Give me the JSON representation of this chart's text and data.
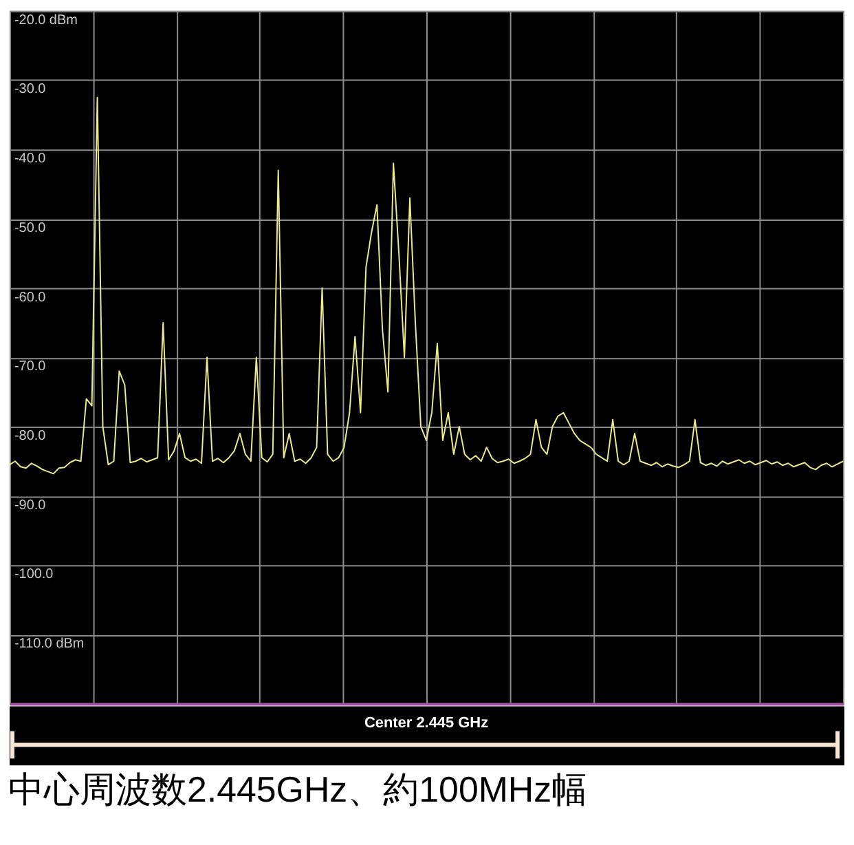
{
  "chart_data": {
    "type": "line",
    "categories": [
      null,
      null,
      null,
      null,
      null,
      null,
      null,
      null,
      null,
      null,
      null,
      null,
      null,
      null,
      null,
      null,
      null,
      null,
      null,
      null,
      null,
      null,
      null,
      null,
      null,
      null,
      null,
      null,
      null,
      null,
      null,
      null,
      null,
      null,
      null,
      null,
      null,
      null,
      null,
      null,
      null,
      null,
      null,
      null,
      null,
      null,
      null,
      null,
      null,
      null,
      null,
      null,
      null,
      null,
      null,
      null,
      null,
      null,
      null,
      null,
      null,
      null,
      null,
      null,
      null,
      null,
      null,
      null,
      null,
      null,
      null,
      null,
      null,
      null,
      null,
      null,
      null,
      null,
      null,
      null,
      null,
      null,
      null,
      null,
      null,
      null,
      null,
      null,
      null,
      null,
      null,
      null,
      null,
      null,
      null,
      null,
      null,
      null,
      null,
      null,
      null,
      null,
      null,
      null,
      null,
      null,
      null,
      null,
      null,
      null,
      null,
      null,
      null,
      null,
      null,
      null,
      null,
      null,
      null,
      null,
      null,
      null,
      null,
      null,
      null,
      null,
      null,
      null,
      null,
      null,
      null,
      null,
      null,
      null,
      null,
      null,
      null,
      null,
      null,
      null,
      null,
      null,
      null,
      null,
      null,
      null,
      null,
      null,
      null,
      null,
      null,
      null,
      null
    ],
    "series": [
      {
        "color": "#e8e88c",
        "values": [
          -85.5,
          -85.0,
          -85.8,
          -86.0,
          -85.3,
          -85.7,
          -86.2,
          -86.5,
          -86.8,
          -86.0,
          -85.9,
          -85.2,
          -84.8,
          -85.0,
          -76,
          -77,
          -32.5,
          -80,
          -85.5,
          -85.0,
          -72,
          -74,
          -85.2,
          -85.0,
          -84.6,
          -85.1,
          -84.8,
          -84.5,
          -65,
          -84.8,
          -83.5,
          -81,
          -84.5,
          -85.0,
          -84.7,
          -85.3,
          -70,
          -85.0,
          -84.6,
          -85.2,
          -84.5,
          -83.5,
          -81,
          -84.0,
          -85.0,
          -70,
          -84.5,
          -85.1,
          -84.0,
          -43,
          -84.5,
          -81,
          -85.0,
          -84.7,
          -85.3,
          -84.5,
          -83.0,
          -60,
          -84.0,
          -85.0,
          -84.5,
          -83,
          -78,
          -67,
          -78,
          -57,
          -52,
          -48,
          -66,
          -75,
          -42,
          -55,
          -70,
          -47,
          -65,
          -80,
          -82,
          -78,
          -68,
          -82,
          -78,
          -84,
          -80,
          -84,
          -84.8,
          -84.2,
          -85.0,
          -83,
          -84.6,
          -85.2,
          -85.0,
          -84.7,
          -85.3,
          -85.0,
          -84.6,
          -84.0,
          -79,
          -83,
          -84,
          -80,
          -78.5,
          -78,
          -79.5,
          -81,
          -82,
          -82.5,
          -83,
          -84,
          -84.5,
          -85,
          -79,
          -85,
          -85.5,
          -85,
          -81,
          -85,
          -85.3,
          -85.6,
          -85.2,
          -85.8,
          -85.4,
          -85.7,
          -85.9,
          -85.5,
          -85.0,
          -79,
          -85.2,
          -85.6,
          -85.3,
          -85.7,
          -85.0,
          -85.4,
          -85.1,
          -84.8,
          -85.3,
          -85.0,
          -85.5,
          -85.2,
          -84.9,
          -85.4,
          -85.1,
          -85.6,
          -85.3,
          -85.8,
          -85.5,
          -85.2,
          -85.9,
          -86.2,
          -85.6,
          -85.3,
          -85.8,
          -85.4,
          -85.0
        ]
      }
    ],
    "ylim": [
      -120,
      -20
    ],
    "yticks": [
      {
        "value": -20,
        "label": "-20.0 dBm"
      },
      {
        "value": -30,
        "label": "-30.0"
      },
      {
        "value": -40,
        "label": "-40.0"
      },
      {
        "value": -50,
        "label": "-50.0"
      },
      {
        "value": -60,
        "label": "-60.0"
      },
      {
        "value": -70,
        "label": "-70.0"
      },
      {
        "value": -80,
        "label": "-80.0"
      },
      {
        "value": -90,
        "label": "-90.0"
      },
      {
        "value": -100,
        "label": "-100.0"
      },
      {
        "value": -110,
        "label": "-110.0 dBm"
      },
      {
        "value": -120,
        "label": null
      }
    ],
    "grid": true,
    "line_style": "solid",
    "marker": "none",
    "annotations": [
      "Center 2.445 GHz",
      "中心周波数2.445GHz、約100MHz幅"
    ]
  }
}
